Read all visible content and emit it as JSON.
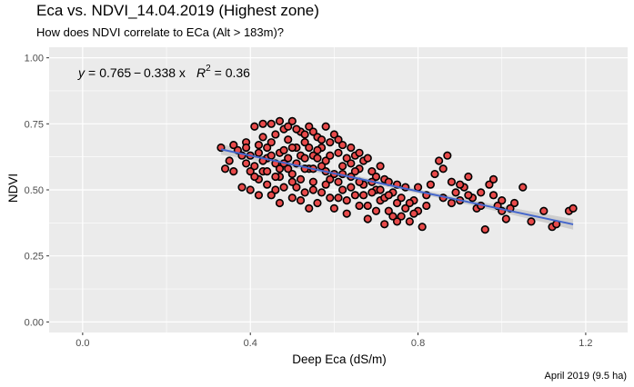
{
  "title": "Eca vs. NDVI_14.04.2019 (Highest zone)",
  "subtitle": "How does NDVI correlate to ECa (Alt > 183m)?",
  "caption": "April 2019 (9.5 ha)",
  "colors": {
    "panel": "#ebebeb",
    "grid": "#ffffff",
    "point_fill": "#e84a4a",
    "point_stroke": "#000000",
    "fit_line": "#4466cc",
    "ci_band": "#999999"
  },
  "chart_data": {
    "type": "scatter",
    "xlabel": "Deep Eca (dS/m)",
    "ylabel": "NDVI",
    "xlim": [
      -0.08,
      1.3
    ],
    "ylim": [
      -0.04,
      1.04
    ],
    "xticks": [
      0.0,
      0.4,
      0.8,
      1.2
    ],
    "xtick_labels": [
      "0.0",
      "0.4",
      "0.8",
      "1.2"
    ],
    "yticks": [
      0.0,
      0.25,
      0.5,
      0.75,
      1.0
    ],
    "ytick_labels": [
      "0.00",
      "0.25",
      "0.50",
      "0.75",
      "1.00"
    ],
    "grid": true,
    "legend": "none",
    "fit": {
      "intercept": 0.765,
      "slope": -0.338,
      "x_range": [
        0.33,
        1.17
      ],
      "annotation": {
        "y_lhs": "y",
        "equals": "=",
        "formula": "0.765 − 0.338 x",
        "r_sym": "R",
        "r_sup": "2",
        "r_val": "= 0.36"
      }
    },
    "points": [
      [
        0.33,
        0.66
      ],
      [
        0.34,
        0.58
      ],
      [
        0.35,
        0.61
      ],
      [
        0.36,
        0.57
      ],
      [
        0.37,
        0.65
      ],
      [
        0.38,
        0.63
      ],
      [
        0.39,
        0.68
      ],
      [
        0.4,
        0.57
      ],
      [
        0.41,
        0.74
      ],
      [
        0.42,
        0.67
      ],
      [
        0.43,
        0.7
      ],
      [
        0.44,
        0.62
      ],
      [
        0.45,
        0.75
      ],
      [
        0.46,
        0.71
      ],
      [
        0.47,
        0.64
      ],
      [
        0.48,
        0.73
      ],
      [
        0.49,
        0.69
      ],
      [
        0.5,
        0.76
      ],
      [
        0.51,
        0.66
      ],
      [
        0.52,
        0.72
      ],
      [
        0.53,
        0.68
      ],
      [
        0.54,
        0.74
      ],
      [
        0.55,
        0.63
      ],
      [
        0.56,
        0.7
      ],
      [
        0.38,
        0.51
      ],
      [
        0.4,
        0.5
      ],
      [
        0.42,
        0.54
      ],
      [
        0.44,
        0.52
      ],
      [
        0.45,
        0.48
      ],
      [
        0.47,
        0.55
      ],
      [
        0.48,
        0.51
      ],
      [
        0.5,
        0.47
      ],
      [
        0.41,
        0.59
      ],
      [
        0.43,
        0.57
      ],
      [
        0.44,
        0.66
      ],
      [
        0.46,
        0.6
      ],
      [
        0.47,
        0.58
      ],
      [
        0.49,
        0.62
      ],
      [
        0.5,
        0.56
      ],
      [
        0.51,
        0.6
      ],
      [
        0.52,
        0.54
      ],
      [
        0.53,
        0.49
      ],
      [
        0.54,
        0.58
      ],
      [
        0.55,
        0.53
      ],
      [
        0.56,
        0.45
      ],
      [
        0.57,
        0.59
      ],
      [
        0.58,
        0.52
      ],
      [
        0.59,
        0.47
      ],
      [
        0.57,
        0.66
      ],
      [
        0.58,
        0.61
      ],
      [
        0.59,
        0.68
      ],
      [
        0.6,
        0.56
      ],
      [
        0.61,
        0.64
      ],
      [
        0.62,
        0.5
      ],
      [
        0.63,
        0.62
      ],
      [
        0.64,
        0.55
      ],
      [
        0.6,
        0.71
      ],
      [
        0.62,
        0.67
      ],
      [
        0.64,
        0.6
      ],
      [
        0.65,
        0.48
      ],
      [
        0.66,
        0.58
      ],
      [
        0.67,
        0.52
      ],
      [
        0.68,
        0.44
      ],
      [
        0.69,
        0.57
      ],
      [
        0.7,
        0.5
      ],
      [
        0.71,
        0.46
      ],
      [
        0.72,
        0.54
      ],
      [
        0.73,
        0.42
      ],
      [
        0.74,
        0.49
      ],
      [
        0.75,
        0.45
      ],
      [
        0.76,
        0.4
      ],
      [
        0.77,
        0.51
      ],
      [
        0.78,
        0.38
      ],
      [
        0.79,
        0.46
      ],
      [
        0.8,
        0.42
      ],
      [
        0.81,
        0.36
      ],
      [
        0.82,
        0.48
      ],
      [
        0.83,
        0.52
      ],
      [
        0.84,
        0.56
      ],
      [
        0.85,
        0.61
      ],
      [
        0.86,
        0.58
      ],
      [
        0.87,
        0.63
      ],
      [
        0.88,
        0.53
      ],
      [
        0.89,
        0.49
      ],
      [
        0.9,
        0.46
      ],
      [
        0.91,
        0.51
      ],
      [
        0.92,
        0.55
      ],
      [
        0.93,
        0.47
      ],
      [
        0.94,
        0.43
      ],
      [
        0.95,
        0.49
      ],
      [
        0.96,
        0.35
      ],
      [
        0.97,
        0.52
      ],
      [
        0.98,
        0.54
      ],
      [
        0.99,
        0.44
      ],
      [
        1.0,
        0.42
      ],
      [
        1.01,
        0.39
      ],
      [
        1.03,
        0.45
      ],
      [
        1.05,
        0.51
      ],
      [
        1.07,
        0.38
      ],
      [
        1.1,
        0.42
      ],
      [
        1.12,
        0.36
      ],
      [
        1.13,
        0.37
      ],
      [
        1.16,
        0.42
      ],
      [
        1.17,
        0.43
      ],
      [
        0.36,
        0.67
      ],
      [
        0.39,
        0.6
      ],
      [
        0.41,
        0.55
      ],
      [
        0.43,
        0.61
      ],
      [
        0.45,
        0.68
      ],
      [
        0.46,
        0.55
      ],
      [
        0.48,
        0.65
      ],
      [
        0.49,
        0.58
      ],
      [
        0.51,
        0.51
      ],
      [
        0.52,
        0.63
      ],
      [
        0.53,
        0.58
      ],
      [
        0.55,
        0.5
      ],
      [
        0.56,
        0.65
      ],
      [
        0.58,
        0.57
      ],
      [
        0.59,
        0.63
      ],
      [
        0.61,
        0.53
      ],
      [
        0.62,
        0.59
      ],
      [
        0.63,
        0.46
      ],
      [
        0.65,
        0.63
      ],
      [
        0.66,
        0.53
      ],
      [
        0.67,
        0.61
      ],
      [
        0.69,
        0.49
      ],
      [
        0.7,
        0.55
      ],
      [
        0.71,
        0.59
      ],
      [
        0.72,
        0.47
      ],
      [
        0.73,
        0.53
      ],
      [
        0.74,
        0.4
      ],
      [
        0.76,
        0.47
      ],
      [
        0.77,
        0.43
      ],
      [
        0.79,
        0.41
      ],
      [
        0.8,
        0.51
      ],
      [
        0.82,
        0.44
      ],
      [
        0.42,
        0.48
      ],
      [
        0.44,
        0.57
      ],
      [
        0.46,
        0.5
      ],
      [
        0.47,
        0.45
      ],
      [
        0.5,
        0.53
      ],
      [
        0.52,
        0.46
      ],
      [
        0.54,
        0.43
      ],
      [
        0.57,
        0.49
      ],
      [
        0.6,
        0.43
      ],
      [
        0.61,
        0.47
      ],
      [
        0.63,
        0.41
      ],
      [
        0.66,
        0.44
      ],
      [
        0.68,
        0.39
      ],
      [
        0.7,
        0.42
      ],
      [
        0.72,
        0.37
      ],
      [
        0.75,
        0.38
      ],
      [
        0.53,
        0.71
      ],
      [
        0.55,
        0.72
      ],
      [
        0.57,
        0.69
      ],
      [
        0.58,
        0.74
      ],
      [
        0.61,
        0.69
      ],
      [
        0.64,
        0.66
      ],
      [
        0.66,
        0.64
      ],
      [
        0.68,
        0.62
      ],
      [
        0.43,
        0.75
      ],
      [
        0.47,
        0.76
      ],
      [
        0.49,
        0.74
      ],
      [
        0.51,
        0.73
      ],
      [
        0.54,
        0.66
      ],
      [
        0.56,
        0.62
      ],
      [
        0.59,
        0.54
      ],
      [
        0.62,
        0.56
      ],
      [
        0.64,
        0.51
      ],
      [
        0.65,
        0.57
      ],
      [
        0.67,
        0.48
      ],
      [
        0.69,
        0.53
      ],
      [
        0.71,
        0.5
      ],
      [
        0.73,
        0.48
      ],
      [
        0.75,
        0.52
      ],
      [
        0.78,
        0.45
      ],
      [
        0.39,
        0.66
      ],
      [
        0.4,
        0.63
      ],
      [
        0.42,
        0.64
      ],
      [
        0.45,
        0.63
      ],
      [
        0.48,
        0.6
      ],
      [
        0.5,
        0.66
      ],
      [
        0.53,
        0.62
      ],
      [
        0.55,
        0.58
      ],
      [
        0.86,
        0.47
      ],
      [
        0.88,
        0.45
      ],
      [
        0.9,
        0.52
      ],
      [
        0.92,
        0.48
      ],
      [
        0.95,
        0.44
      ],
      [
        0.98,
        0.48
      ],
      [
        1.0,
        0.46
      ],
      [
        1.02,
        0.43
      ]
    ]
  }
}
